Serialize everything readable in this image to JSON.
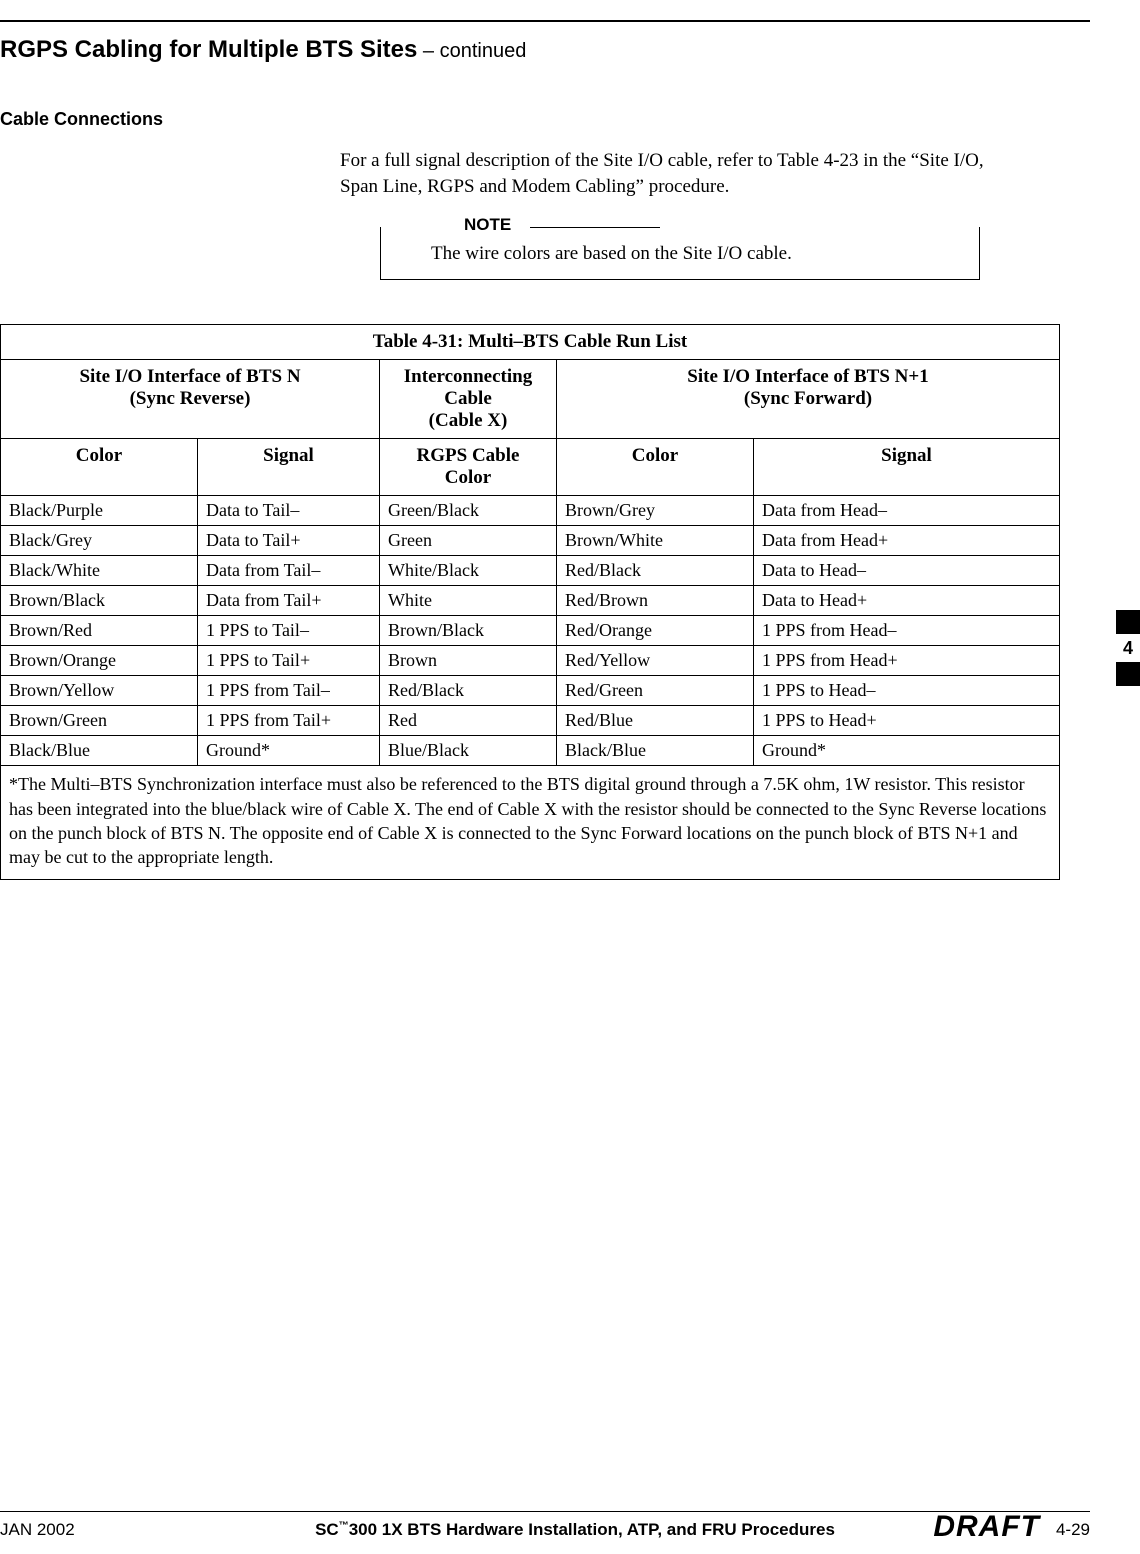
{
  "header": {
    "title_bold": "RGPS Cabling for Multiple BTS Sites",
    "title_suffix": " – continued"
  },
  "section": {
    "heading": "Cable Connections",
    "body": "For a full signal description of the Site I/O cable, refer to Table 4-23 in the “Site I/O, Span Line, RGPS and Modem Cabling” procedure.",
    "note_label": "NOTE",
    "note_text": "The wire colors are based on the Site I/O cable."
  },
  "table": {
    "caption_prefix": "Table 4-31:",
    "caption_rest": " Multi–BTS Cable Run List",
    "group_headers": {
      "g1_l1": "Site I/O Interface of BTS N",
      "g1_l2": "(Sync Reverse)",
      "g2_l1": "Interconnecting",
      "g2_l2": "Cable",
      "g2_l3": "(Cable X)",
      "g3_l1": "Site I/O Interface of BTS N+1",
      "g3_l2": "(Sync Forward)"
    },
    "col_headers": {
      "h1": "Color",
      "h2": "Signal",
      "h3_l1": "RGPS Cable",
      "h3_l2": "Color",
      "h4": "Color",
      "h5": "Signal"
    },
    "rows": [
      [
        "Black/Purple",
        "Data to Tail–",
        "Green/Black",
        "Brown/Grey",
        "Data from Head–"
      ],
      [
        "Black/Grey",
        "Data to Tail+",
        "Green",
        "Brown/White",
        "Data from Head+"
      ],
      [
        "Black/White",
        "Data from Tail–",
        "White/Black",
        "Red/Black",
        "Data to Head–"
      ],
      [
        "Brown/Black",
        "Data from Tail+",
        "White",
        "Red/Brown",
        "Data to Head+"
      ],
      [
        "Brown/Red",
        "1 PPS to Tail–",
        "Brown/Black",
        "Red/Orange",
        "1 PPS from Head–"
      ],
      [
        "Brown/Orange",
        "1 PPS to Tail+",
        "Brown",
        "Red/Yellow",
        "1 PPS from Head+"
      ],
      [
        "Brown/Yellow",
        "1 PPS from Tail–",
        "Red/Black",
        "Red/Green",
        "1 PPS to Head–"
      ],
      [
        "Brown/Green",
        "1 PPS from Tail+",
        "Red",
        "Red/Blue",
        "1 PPS to Head+"
      ],
      [
        "Black/Blue",
        "Ground*",
        "Blue/Black",
        "Black/Blue",
        "Ground*"
      ]
    ],
    "footnote": "*The Multi–BTS Synchronization interface must also be referenced to the BTS digital ground through a 7.5K ohm, 1W resistor.  This resistor has been integrated into the blue/black wire of Cable X.  The end of Cable X with the resistor should be connected to the Sync Reverse locations on the punch block of BTS N.  The opposite end of Cable X is connected to the Sync Forward locations on the punch block of BTS N+1 and may be cut to the appropriate length."
  },
  "side_tab": {
    "number": "4"
  },
  "footer": {
    "left": "JAN 2002",
    "center_prefix": "SC",
    "center_rest": "300 1X BTS Hardware Installation, ATP, and FRU Procedures",
    "right": "4-29",
    "draft": "DRAFT"
  }
}
